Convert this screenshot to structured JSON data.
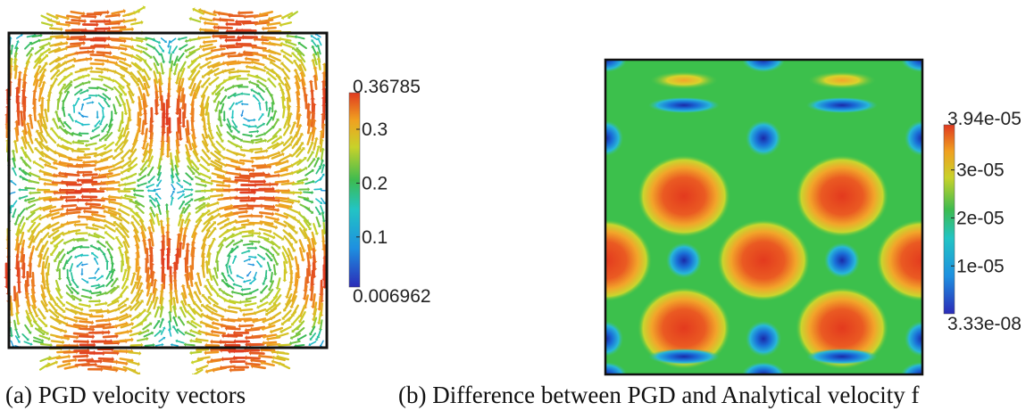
{
  "figure_a": {
    "caption": "(a) PGD velocity vectors",
    "colorbar": {
      "max_label": "0.36785",
      "min_label": "0.006962",
      "ticks": [
        "0.3",
        "0.2",
        "0.1"
      ],
      "tick_values": [
        0.3,
        0.2,
        0.1
      ],
      "min": 0.006962,
      "max": 0.36785
    }
  },
  "figure_b": {
    "caption": "(b) Difference between PGD and Analytical velocity f",
    "colorbar": {
      "max_label": "3.94e-05",
      "min_label": "3.33e-08",
      "ticks": [
        "3e-05",
        "2e-05",
        "1e-05"
      ],
      "tick_values": [
        3e-05,
        2e-05,
        1e-05
      ],
      "min": 3.33e-08,
      "max": 3.94e-05
    }
  },
  "colors": {
    "jet": [
      "#2b2bb8",
      "#1e90e0",
      "#22c4c4",
      "#3dbb50",
      "#c8d22a",
      "#f0a020",
      "#e03a20"
    ]
  }
}
